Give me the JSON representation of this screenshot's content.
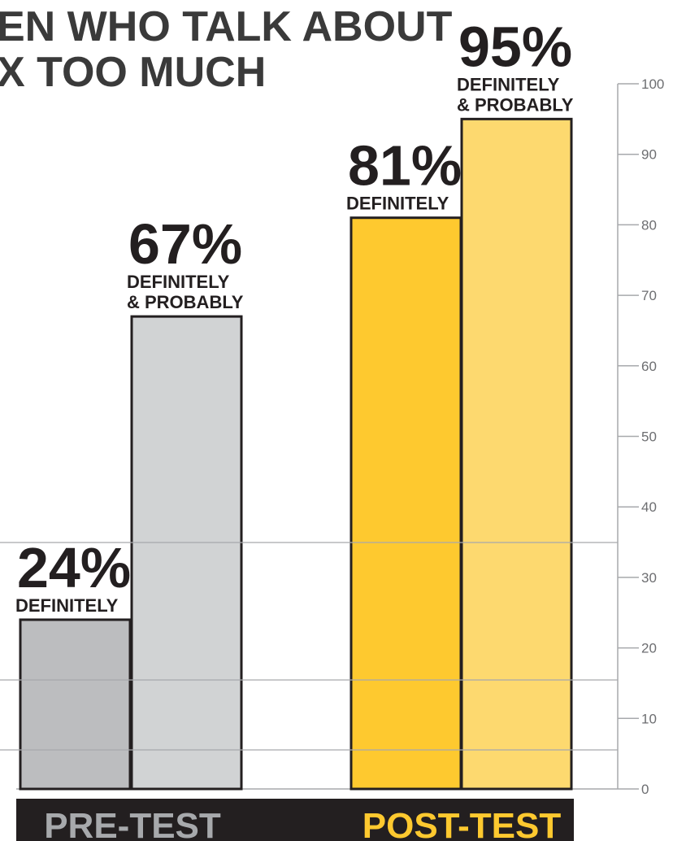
{
  "title": {
    "line1": "EN WHO TALK ABOUT",
    "line2": "X TOO MUCH"
  },
  "chart_data": {
    "type": "bar",
    "title": "EN WHO TALK ABOUT X TOO MUCH",
    "categories": [
      "PRE-TEST",
      "POST-TEST"
    ],
    "series": [
      {
        "name": "DEFINITELY",
        "values": [
          24,
          81
        ]
      },
      {
        "name": "DEFINITELY & PROBABLY",
        "values": [
          67,
          95
        ]
      }
    ],
    "bars": [
      {
        "category": "PRE-TEST",
        "value": 24,
        "pct_label": "24%",
        "sublabel": [
          "DEFINITELY"
        ],
        "color": "#bcbdbf"
      },
      {
        "category": "PRE-TEST",
        "value": 67,
        "pct_label": "67%",
        "sublabel": [
          "DEFINITELY",
          "& PROBABLY"
        ],
        "color": "#d1d3d4"
      },
      {
        "category": "POST-TEST",
        "value": 81,
        "pct_label": "81%",
        "sublabel": [
          "DEFINITELY"
        ],
        "color": "#fec92f"
      },
      {
        "category": "POST-TEST",
        "value": 95,
        "pct_label": "95%",
        "sublabel": [
          "DEFINITELY",
          "& PROBABLY"
        ],
        "color": "#fdd96f"
      }
    ],
    "ylim": [
      0,
      100
    ],
    "yticks": [
      "0",
      "10",
      "20",
      "30",
      "40",
      "50",
      "60",
      "70",
      "80",
      "90",
      "100"
    ],
    "grid": false,
    "category_colors": {
      "PRE-TEST": "#a7a9ac",
      "POST-TEST": "#fec92f"
    },
    "band_color": "#231f20"
  }
}
